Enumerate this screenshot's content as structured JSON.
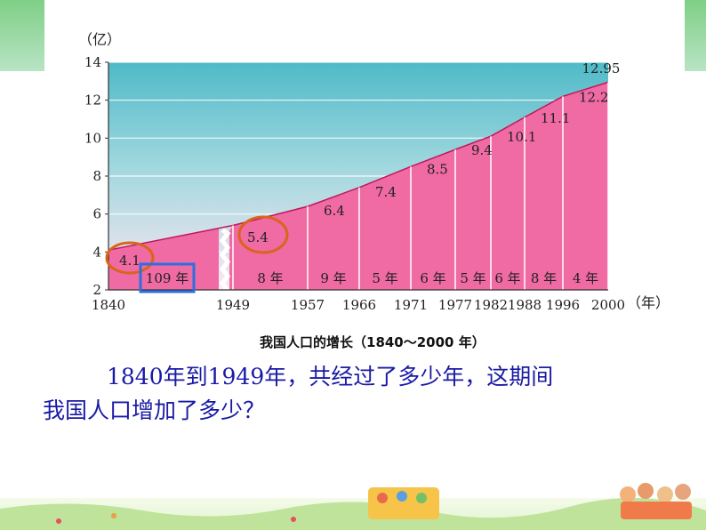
{
  "chart_data": {
    "type": "area",
    "title": "",
    "ylabel": "（亿）",
    "xlabel": "（年）",
    "ylim": [
      2,
      14
    ],
    "yticks": [
      "2",
      "4",
      "6",
      "8",
      "10",
      "12",
      "14"
    ],
    "categories": [
      "1840",
      "1949",
      "1957",
      "1966",
      "1971",
      "1977",
      "1982",
      "1988",
      "1996",
      "2000"
    ],
    "series": [
      {
        "values": [
          4.1,
          5.4,
          6.4,
          7.4,
          8.5,
          9.4,
          10.1,
          11.1,
          12.2,
          12.95
        ]
      }
    ],
    "value_labels": [
      "4.1",
      "5.4",
      "6.4",
      "7.4",
      "8.5",
      "9.4",
      "10.1",
      "11.1",
      "12.2",
      "12.95"
    ],
    "interval_labels": [
      "109 年",
      "8 年",
      "9 年",
      "5 年",
      "6 年",
      "5 年",
      "6 年",
      "8 年",
      "4 年"
    ],
    "axis_break": "1840–1949",
    "highlights": {
      "circled_values": [
        "4.1",
        "5.4"
      ],
      "boxed_interval": "109 年",
      "circle_color": "#d9651b",
      "box_color": "#2b6fe0"
    },
    "caption": "我国人口的增长（1840～2000 年）",
    "colors": {
      "fill": "#f06aa4",
      "sky_top": "#55bfcb",
      "sky_bottom": "#fbe6f1"
    }
  },
  "question": {
    "line1": "1840年到1949年，共经过了多少年，这期间",
    "line2": "我国人口增加了多少？"
  }
}
